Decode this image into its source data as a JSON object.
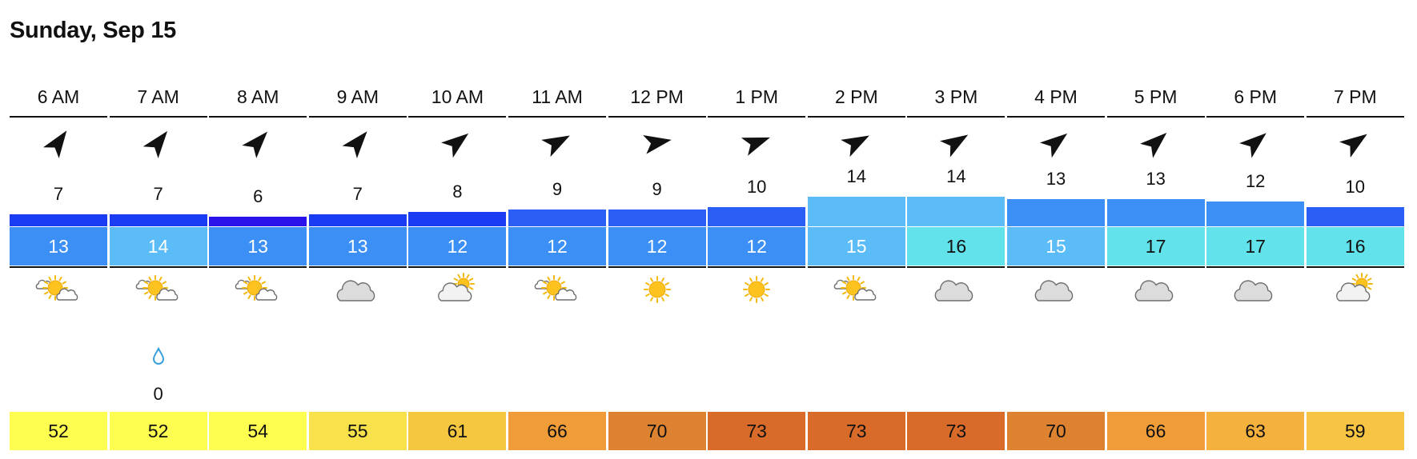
{
  "title": "Sunday, Sep 15",
  "hours": [
    {
      "label": "6 AM",
      "wind_dir_deg": 35,
      "wind": "7",
      "gust": "13",
      "gust_color": "#3b8ff5",
      "gust_text": "#ffffff",
      "wind_bar_color": "#1a3cf2",
      "weather_icon": "partly-sunny-icon",
      "precip_icon": "",
      "precip": "",
      "temp": "52",
      "temp_color": "#fefe50"
    },
    {
      "label": "7 AM",
      "wind_dir_deg": 38,
      "wind": "7",
      "gust": "14",
      "gust_color": "#5bbcf7",
      "gust_text": "#ffffff",
      "wind_bar_color": "#1a3cf2",
      "weather_icon": "partly-sunny-icon",
      "precip_icon": "raindrop-icon",
      "precip": "0",
      "temp": "52",
      "temp_color": "#fefe50"
    },
    {
      "label": "8 AM",
      "wind_dir_deg": 42,
      "wind": "6",
      "gust": "13",
      "gust_color": "#3b8ff5",
      "gust_text": "#ffffff",
      "wind_bar_color": "#2a12ea",
      "weather_icon": "partly-sunny-icon",
      "precip_icon": "",
      "precip": "",
      "temp": "54",
      "temp_color": "#fefe50"
    },
    {
      "label": "9 AM",
      "wind_dir_deg": 40,
      "wind": "7",
      "gust": "13",
      "gust_color": "#3b8ff5",
      "gust_text": "#ffffff",
      "wind_bar_color": "#1a3cf2",
      "weather_icon": "cloud-icon",
      "precip_icon": "",
      "precip": "",
      "temp": "55",
      "temp_color": "#f8e14a"
    },
    {
      "label": "10 AM",
      "wind_dir_deg": 52,
      "wind": "8",
      "gust": "12",
      "gust_color": "#3b8ff5",
      "gust_text": "#ffffff",
      "wind_bar_color": "#1a3cf2",
      "weather_icon": "mostly-cloudy-icon",
      "precip_icon": "",
      "precip": "",
      "temp": "61",
      "temp_color": "#f5c640"
    },
    {
      "label": "11 AM",
      "wind_dir_deg": 62,
      "wind": "9",
      "gust": "12",
      "gust_color": "#3b8ff5",
      "gust_text": "#ffffff",
      "wind_bar_color": "#2a5ef4",
      "weather_icon": "partly-sunny-icon",
      "precip_icon": "",
      "precip": "",
      "temp": "66",
      "temp_color": "#f09c38"
    },
    {
      "label": "12 PM",
      "wind_dir_deg": 80,
      "wind": "9",
      "gust": "12",
      "gust_color": "#3b8ff5",
      "gust_text": "#ffffff",
      "wind_bar_color": "#2a5ef4",
      "weather_icon": "sun-icon",
      "precip_icon": "",
      "precip": "",
      "temp": "70",
      "temp_color": "#dc8230"
    },
    {
      "label": "1 PM",
      "wind_dir_deg": 70,
      "wind": "10",
      "gust": "12",
      "gust_color": "#3b8ff5",
      "gust_text": "#ffffff",
      "wind_bar_color": "#2a5ef4",
      "weather_icon": "sun-icon",
      "precip_icon": "",
      "precip": "",
      "temp": "73",
      "temp_color": "#d86a2a"
    },
    {
      "label": "2 PM",
      "wind_dir_deg": 62,
      "wind": "14",
      "gust": "15",
      "gust_color": "#5bbcf7",
      "gust_text": "#ffffff",
      "wind_bar_color": "#5bbcf7",
      "weather_icon": "partly-sunny-icon",
      "precip_icon": "",
      "precip": "",
      "temp": "73",
      "temp_color": "#d86a2a"
    },
    {
      "label": "3 PM",
      "wind_dir_deg": 58,
      "wind": "14",
      "gust": "16",
      "gust_color": "#62e2eb",
      "gust_text": "#111111",
      "wind_bar_color": "#5bbcf7",
      "weather_icon": "cloud-icon",
      "precip_icon": "",
      "precip": "",
      "temp": "73",
      "temp_color": "#d86a2a"
    },
    {
      "label": "4 PM",
      "wind_dir_deg": 52,
      "wind": "13",
      "gust": "15",
      "gust_color": "#5bbcf7",
      "gust_text": "#ffffff",
      "wind_bar_color": "#3b8ff5",
      "weather_icon": "cloud-icon",
      "precip_icon": "",
      "precip": "",
      "temp": "70",
      "temp_color": "#dc8230"
    },
    {
      "label": "5 PM",
      "wind_dir_deg": 48,
      "wind": "13",
      "gust": "17",
      "gust_color": "#62e2eb",
      "gust_text": "#111111",
      "wind_bar_color": "#3b8ff5",
      "weather_icon": "cloud-icon",
      "precip_icon": "",
      "precip": "",
      "temp": "66",
      "temp_color": "#f09c38"
    },
    {
      "label": "6 PM",
      "wind_dir_deg": 50,
      "wind": "12",
      "gust": "17",
      "gust_color": "#62e2eb",
      "gust_text": "#111111",
      "wind_bar_color": "#3b8ff5",
      "weather_icon": "cloud-icon",
      "precip_icon": "",
      "precip": "",
      "temp": "63",
      "temp_color": "#f5b13e"
    },
    {
      "label": "7 PM",
      "wind_dir_deg": 55,
      "wind": "10",
      "gust": "16",
      "gust_color": "#62e2eb",
      "gust_text": "#111111",
      "wind_bar_color": "#2a5ef4",
      "weather_icon": "mostly-cloudy-icon",
      "precip_icon": "",
      "precip": "",
      "temp": "59",
      "temp_color": "#f8c444"
    }
  ]
}
